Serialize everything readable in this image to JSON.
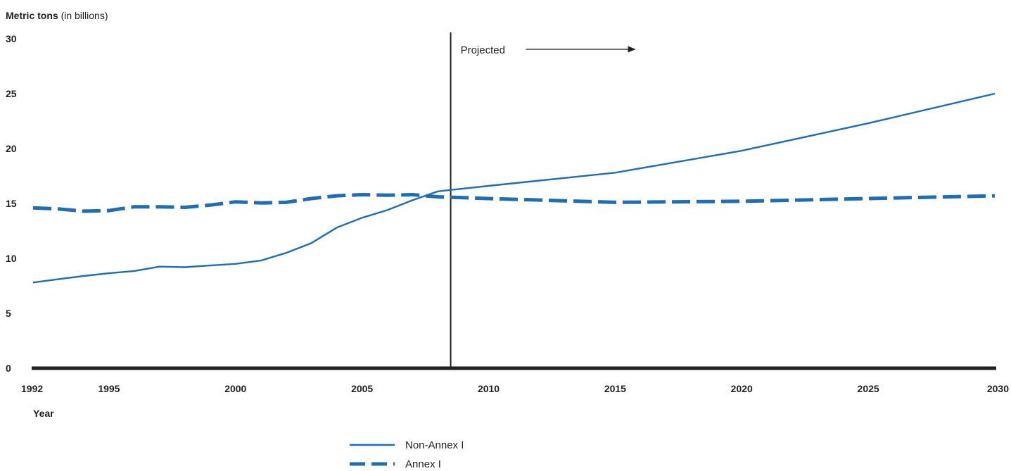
{
  "chart_data": {
    "type": "line",
    "ylabel_bold": "Metric tons",
    "ylabel_rest": " (in billions)",
    "xlabel": "Year",
    "xlim": [
      1992,
      2030
    ],
    "ylim": [
      0,
      30
    ],
    "x_ticks": [
      1992,
      1995,
      2000,
      2005,
      2010,
      2015,
      2020,
      2025,
      2030
    ],
    "y_ticks": [
      0,
      5,
      10,
      15,
      20,
      25,
      30
    ],
    "grid": false,
    "legend_position": "bottom-center",
    "projection_start": 2008.5,
    "annotation": "Projected",
    "series": [
      {
        "name": "Non-Annex I",
        "style": "solid",
        "color": "#1f6db3",
        "points": [
          [
            1992,
            7.8
          ],
          [
            1993,
            8.1
          ],
          [
            1994,
            8.4
          ],
          [
            1995,
            8.65
          ],
          [
            1996,
            8.85
          ],
          [
            1997,
            9.25
          ],
          [
            1998,
            9.2
          ],
          [
            1999,
            9.35
          ],
          [
            2000,
            9.5
          ],
          [
            2001,
            9.8
          ],
          [
            2002,
            10.5
          ],
          [
            2003,
            11.4
          ],
          [
            2004,
            12.8
          ],
          [
            2005,
            13.7
          ],
          [
            2006,
            14.4
          ],
          [
            2007,
            15.3
          ],
          [
            2008,
            16.1
          ],
          [
            2010,
            16.6
          ],
          [
            2015,
            17.8
          ],
          [
            2020,
            19.8
          ],
          [
            2025,
            22.3
          ],
          [
            2030,
            25.0
          ]
        ]
      },
      {
        "name": "Annex I",
        "style": "dashed",
        "color": "#1f6db3",
        "points": [
          [
            1992,
            14.6
          ],
          [
            1993,
            14.5
          ],
          [
            1994,
            14.3
          ],
          [
            1995,
            14.35
          ],
          [
            1996,
            14.7
          ],
          [
            1997,
            14.7
          ],
          [
            1998,
            14.65
          ],
          [
            1999,
            14.85
          ],
          [
            2000,
            15.15
          ],
          [
            2001,
            15.05
          ],
          [
            2002,
            15.1
          ],
          [
            2003,
            15.45
          ],
          [
            2004,
            15.7
          ],
          [
            2005,
            15.8
          ],
          [
            2006,
            15.75
          ],
          [
            2007,
            15.8
          ],
          [
            2008,
            15.6
          ],
          [
            2010,
            15.45
          ],
          [
            2015,
            15.1
          ],
          [
            2020,
            15.2
          ],
          [
            2025,
            15.45
          ],
          [
            2030,
            15.7
          ]
        ]
      }
    ]
  }
}
